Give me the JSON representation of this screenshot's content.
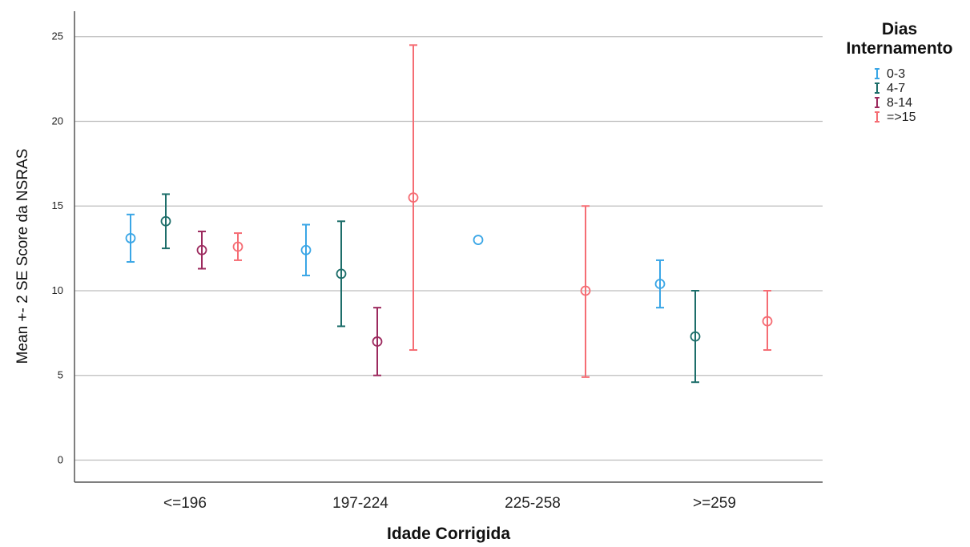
{
  "chart_data": {
    "type": "scatter",
    "subtype": "error-bar",
    "xlabel": "Idade Corrigida",
    "ylabel": "Mean +- 2 SE Score da NSRAS",
    "categories": [
      "<=196",
      "197-224",
      "225-258",
      ">=259"
    ],
    "ylim": [
      -1.3,
      26.5
    ],
    "yticks": [
      0,
      5,
      10,
      15,
      20,
      25
    ],
    "grid": "horizontal",
    "legend": {
      "title_line1": "Dias",
      "title_line2": "Internamento",
      "placement": "top-right"
    },
    "series": [
      {
        "name": "0-3",
        "color": "#3aa6e6",
        "points": [
          {
            "category": "<=196",
            "mean": 13.1,
            "low": 11.7,
            "high": 14.5
          },
          {
            "category": "197-224",
            "mean": 12.4,
            "low": 10.9,
            "high": 13.9
          },
          {
            "category": "225-258",
            "mean": 13.0,
            "low": null,
            "high": null
          },
          {
            "category": ">=259",
            "mean": 10.4,
            "low": 9.0,
            "high": 11.8
          }
        ]
      },
      {
        "name": "4-7",
        "color": "#1d6e6a",
        "points": [
          {
            "category": "<=196",
            "mean": 14.1,
            "low": 12.5,
            "high": 15.7
          },
          {
            "category": "197-224",
            "mean": 11.0,
            "low": 7.9,
            "high": 14.1
          },
          {
            "category": ">=259",
            "mean": 7.3,
            "low": 4.6,
            "high": 10.0
          }
        ]
      },
      {
        "name": "8-14",
        "color": "#9c2a5e",
        "points": [
          {
            "category": "<=196",
            "mean": 12.4,
            "low": 11.3,
            "high": 13.5
          },
          {
            "category": "197-224",
            "mean": 7.0,
            "low": 5.0,
            "high": 9.0
          }
        ]
      },
      {
        "name": "=>15",
        "color": "#f56d74",
        "points": [
          {
            "category": "<=196",
            "mean": 12.6,
            "low": 11.8,
            "high": 13.4
          },
          {
            "category": "197-224",
            "mean": 15.5,
            "low": 6.5,
            "high": 24.5
          },
          {
            "category": "225-258",
            "mean": 10.0,
            "low": 4.9,
            "high": 15.0
          },
          {
            "category": ">=259",
            "mean": 8.2,
            "low": 6.5,
            "high": 10.0
          }
        ]
      }
    ]
  }
}
